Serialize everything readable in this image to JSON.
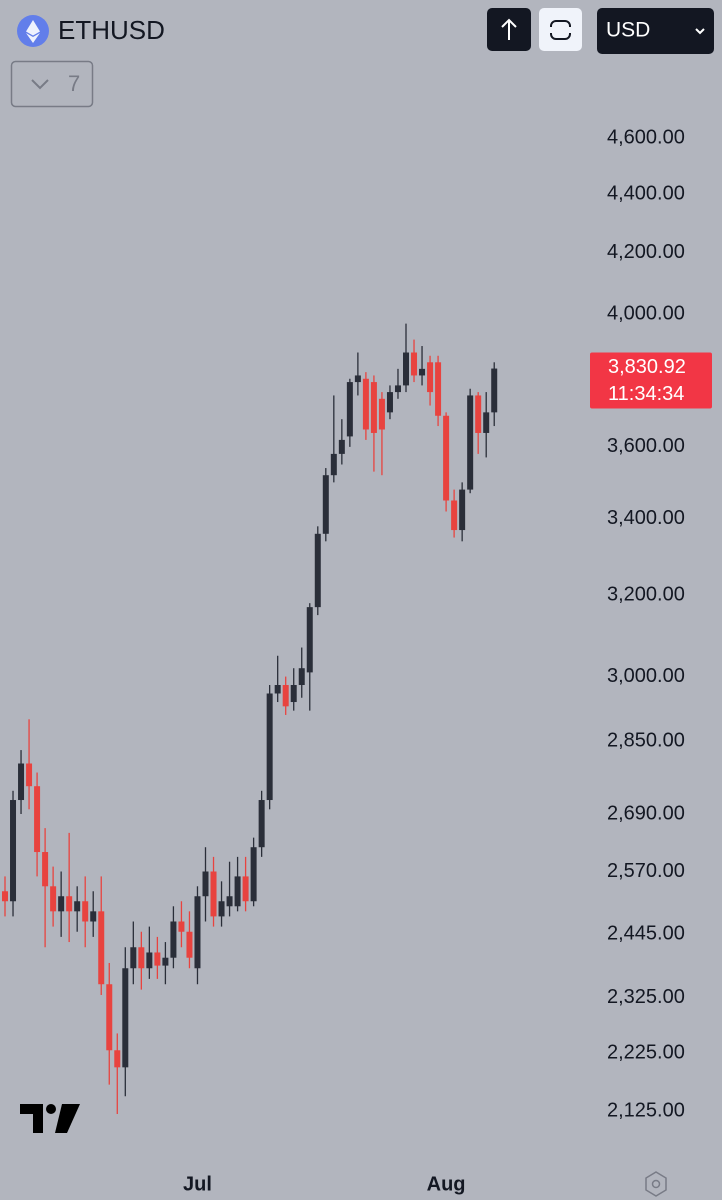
{
  "chart_data": {
    "type": "candlestick",
    "title": "ETHUSD",
    "log_scale": true,
    "ui": {
      "interval_badge": "7",
      "currency": "USD"
    },
    "last_price": {
      "value": 3830.92,
      "label": "3,830.92"
    },
    "countdown": "11:34:34",
    "up_color": "#2a2e39",
    "down_color": "#e8433f",
    "label_color": "#f23645",
    "categories": [
      null,
      null,
      null,
      null,
      null,
      null,
      null,
      null,
      null,
      null,
      null,
      null,
      null,
      null,
      null,
      null,
      null,
      null,
      null,
      null,
      null,
      null,
      null,
      null,
      "Jul",
      null,
      null,
      null,
      null,
      null,
      null,
      null,
      null,
      null,
      null,
      null,
      null,
      null,
      null,
      null,
      null,
      null,
      null,
      null,
      null,
      null,
      null,
      null,
      null,
      null,
      null,
      null,
      null,
      null,
      null,
      "Aug",
      null,
      null,
      null,
      null,
      null,
      null
    ],
    "open": [
      2530,
      2510,
      2720,
      2800,
      2750,
      2610,
      2540,
      2490,
      2520,
      2490,
      2510,
      2470,
      2490,
      2350,
      2230,
      2200,
      2380,
      2420,
      2380,
      2410,
      2385,
      2400,
      2470,
      2450,
      2380,
      2520,
      2570,
      2480,
      2500,
      2500,
      2560,
      2510,
      2620,
      2720,
      2960,
      2980,
      2940,
      2980,
      3010,
      3170,
      3360,
      3520,
      3580,
      3630,
      3790,
      3800,
      3790,
      3740,
      3700,
      3760,
      3780,
      3880,
      3810,
      3850,
      3850,
      3690,
      3450,
      3370,
      3480,
      3750,
      3640,
      3700
    ],
    "high": [
      2560,
      2740,
      2830,
      2900,
      2780,
      2660,
      2580,
      2570,
      2650,
      2540,
      2560,
      2530,
      2560,
      2390,
      2260,
      2420,
      2470,
      2450,
      2460,
      2440,
      2430,
      2500,
      2510,
      2490,
      2540,
      2620,
      2600,
      2550,
      2590,
      2600,
      2600,
      2640,
      2740,
      2980,
      3050,
      3000,
      3020,
      3070,
      3180,
      3380,
      3540,
      3750,
      3680,
      3800,
      3880,
      3820,
      3810,
      3760,
      3780,
      3830,
      3970,
      3920,
      3900,
      3870,
      3870,
      3700,
      3480,
      3500,
      3770,
      3760,
      3760,
      3850
    ],
    "low": [
      2480,
      2480,
      2690,
      2700,
      2560,
      2420,
      2460,
      2440,
      2430,
      2450,
      2420,
      2440,
      2330,
      2170,
      2120,
      2150,
      2350,
      2340,
      2360,
      2360,
      2350,
      2380,
      2420,
      2380,
      2350,
      2470,
      2460,
      2460,
      2480,
      2490,
      2490,
      2500,
      2600,
      2700,
      2940,
      2910,
      2920,
      2950,
      2920,
      3150,
      3340,
      3500,
      3550,
      3600,
      3750,
      3620,
      3530,
      3520,
      3680,
      3740,
      3760,
      3790,
      3780,
      3720,
      3660,
      3420,
      3350,
      3340,
      3470,
      3580,
      3570,
      3660
    ],
    "close": [
      2510,
      2720,
      2800,
      2750,
      2610,
      2540,
      2490,
      2520,
      2490,
      2510,
      2470,
      2490,
      2350,
      2230,
      2200,
      2380,
      2420,
      2380,
      2410,
      2385,
      2400,
      2470,
      2450,
      2400,
      2520,
      2570,
      2480,
      2510,
      2520,
      2560,
      2510,
      2620,
      2720,
      2960,
      2980,
      2930,
      2980,
      3020,
      3170,
      3360,
      3520,
      3580,
      3620,
      3790,
      3810,
      3650,
      3640,
      3650,
      3760,
      3780,
      3880,
      3810,
      3830,
      3760,
      3690,
      3450,
      3370,
      3480,
      3750,
      3640,
      3700,
      3830.92
    ],
    "ylim": [
      2044,
      4894
    ],
    "yticks": [
      {
        "value": 2125,
        "label": "2,125.00"
      },
      {
        "value": 2225,
        "label": "2,225.00"
      },
      {
        "value": 2325,
        "label": "2,325.00"
      },
      {
        "value": 2445,
        "label": "2,445.00"
      },
      {
        "value": 2570,
        "label": "2,570.00"
      },
      {
        "value": 2690,
        "label": "2,690.00"
      },
      {
        "value": 2850,
        "label": "2,850.00"
      },
      {
        "value": 3000,
        "label": "3,000.00"
      },
      {
        "value": 3200,
        "label": "3,200.00"
      },
      {
        "value": 3400,
        "label": "3,400.00"
      },
      {
        "value": 3600,
        "label": "3,600.00"
      },
      {
        "value": 4000,
        "label": "4,000.00"
      },
      {
        "value": 4200,
        "label": "4,200.00"
      },
      {
        "value": 4400,
        "label": "4,400.00"
      },
      {
        "value": 4600,
        "label": "4,600.00"
      }
    ]
  }
}
